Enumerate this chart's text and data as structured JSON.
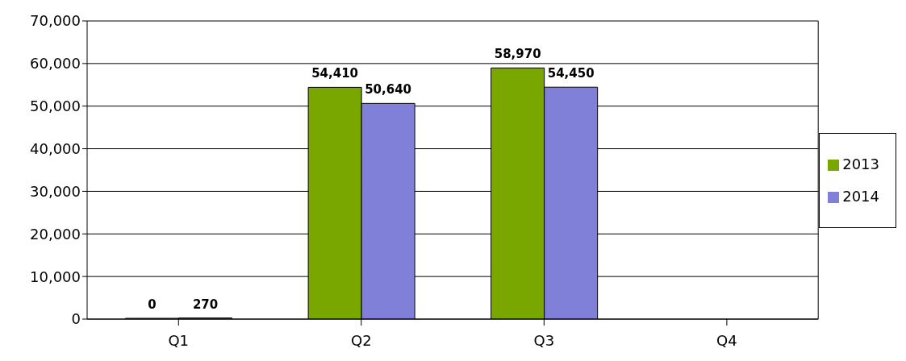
{
  "chart_data": {
    "type": "bar",
    "categories": [
      "Q1",
      "Q2",
      "Q3",
      "Q4"
    ],
    "series": [
      {
        "name": "2013",
        "color": "#7aa600",
        "values": [
          0,
          54410,
          58970,
          null
        ],
        "value_labels": [
          "0",
          "54,410",
          "58,970",
          null
        ]
      },
      {
        "name": "2014",
        "color": "#8080d8",
        "values": [
          270,
          50640,
          54450,
          null
        ],
        "value_labels": [
          "270",
          "50,640",
          "54,450",
          null
        ]
      }
    ],
    "ylim": [
      0,
      70000
    ],
    "yticks": [
      {
        "value": 0,
        "label": "0"
      },
      {
        "value": 10000,
        "label": "10,000"
      },
      {
        "value": 20000,
        "label": "20,000"
      },
      {
        "value": 30000,
        "label": "30,000"
      },
      {
        "value": 40000,
        "label": "40,000"
      },
      {
        "value": 50000,
        "label": "50,000"
      },
      {
        "value": 60000,
        "label": "60,000"
      },
      {
        "value": 70000,
        "label": "70,000"
      }
    ],
    "grid": "y",
    "legend": "right"
  }
}
